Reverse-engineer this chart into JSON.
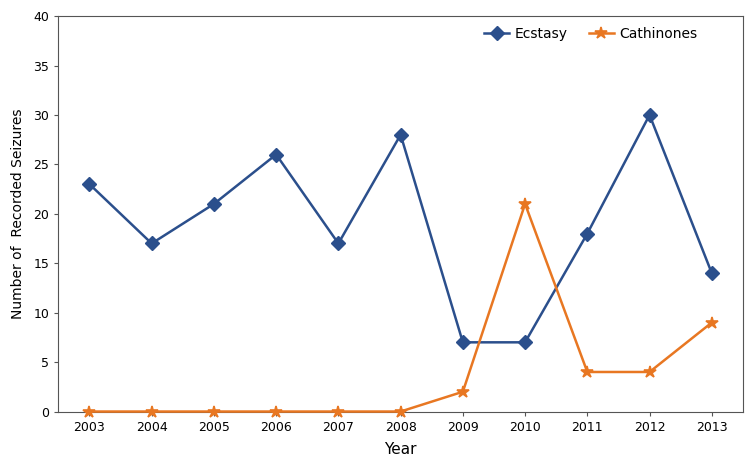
{
  "years": [
    2003,
    2004,
    2005,
    2006,
    2007,
    2008,
    2009,
    2010,
    2011,
    2012,
    2013
  ],
  "ecstasy": [
    23,
    17,
    21,
    26,
    17,
    28,
    7,
    7,
    18,
    30,
    14
  ],
  "cathinones": [
    0,
    0,
    0,
    0,
    0,
    0,
    2,
    21,
    4,
    4,
    9
  ],
  "ecstasy_color": "#2B4F8C",
  "cathinones_color": "#E87722",
  "ecstasy_label": "Ecstasy",
  "cathinones_label": "Cathinones",
  "xlabel": "Year",
  "ylabel": "Number of  Recorded Seizures",
  "ylim": [
    0,
    40
  ],
  "yticks": [
    0,
    5,
    10,
    15,
    20,
    25,
    30,
    35,
    40
  ],
  "xticks": [
    2003,
    2004,
    2005,
    2006,
    2007,
    2008,
    2009,
    2010,
    2011,
    2012,
    2013
  ],
  "background_color": "#ffffff",
  "line_width": 1.8,
  "marker_size_ecstasy": 7,
  "marker_size_cathinones": 9,
  "figsize": [
    7.54,
    4.68
  ],
  "dpi": 100
}
